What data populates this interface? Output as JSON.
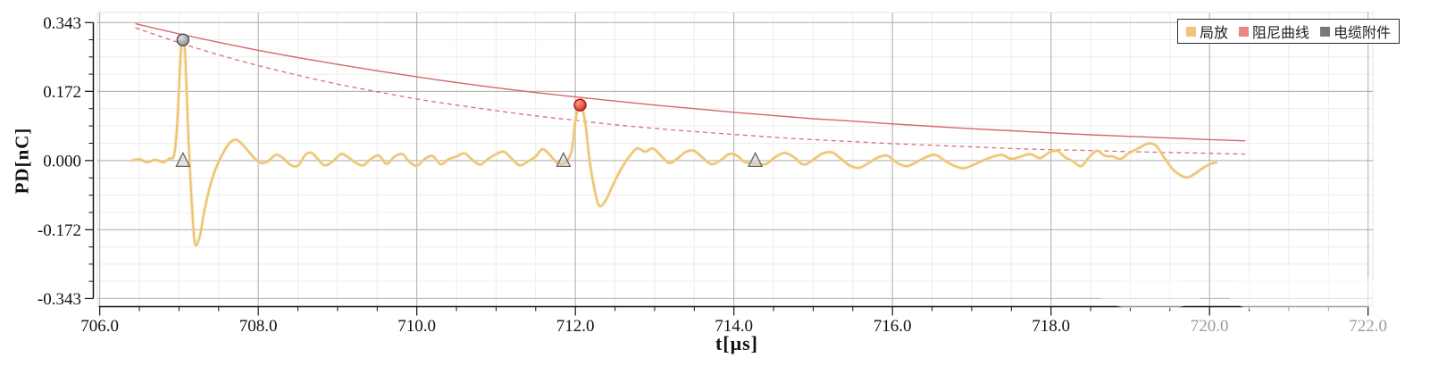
{
  "chart_data": {
    "type": "line",
    "title": "",
    "xlabel": "t[μs]",
    "ylabel": "PD[nC]",
    "xlim": [
      705.97,
      722.06
    ],
    "ylim": [
      -0.362,
      0.368
    ],
    "grid": true,
    "x_ticks": {
      "values": [
        706,
        708,
        710,
        712,
        714,
        716,
        718,
        720,
        722
      ],
      "labels": [
        "706.0",
        "708.0",
        "710.0",
        "712.0",
        "714.0",
        "716.0",
        "718.0",
        "720.0",
        "722.0"
      ],
      "minor_step": 0.5,
      "faded_labels": [
        "720.0",
        "722.0"
      ]
    },
    "y_ticks": {
      "values": [
        0.343,
        0.172,
        0,
        -0.172,
        -0.343
      ],
      "labels": [
        "0.343",
        "0.172",
        "0.000",
        "-0.172",
        "-0.343"
      ],
      "minor_step": 0.043
    },
    "legend": {
      "position": "top-right",
      "items": [
        {
          "label": "局放",
          "color": "#f0c47d"
        },
        {
          "label": "阻尼曲线",
          "color": "#e98583"
        },
        {
          "label": "电缆附件",
          "color": "#787878"
        }
      ]
    },
    "series": [
      {
        "name": "局放",
        "type": "line",
        "style": "solid",
        "color": "#ecc06c",
        "points": [
          [
            706.4,
            0.0
          ],
          [
            706.5,
            0.003
          ],
          [
            706.6,
            -0.004
          ],
          [
            706.7,
            0.002
          ],
          [
            706.8,
            -0.004
          ],
          [
            706.88,
            0.005
          ],
          [
            706.94,
            0.015
          ],
          [
            706.98,
            0.1
          ],
          [
            707.02,
            0.26
          ],
          [
            707.05,
            0.3
          ],
          [
            707.08,
            0.255
          ],
          [
            707.12,
            0.05
          ],
          [
            707.16,
            -0.1
          ],
          [
            707.2,
            -0.205
          ],
          [
            707.26,
            -0.19
          ],
          [
            707.32,
            -0.125
          ],
          [
            707.4,
            -0.058
          ],
          [
            707.48,
            -0.012
          ],
          [
            707.56,
            0.02
          ],
          [
            707.64,
            0.044
          ],
          [
            707.72,
            0.052
          ],
          [
            707.8,
            0.04
          ],
          [
            707.88,
            0.022
          ],
          [
            707.96,
            0.004
          ],
          [
            708.04,
            -0.006
          ],
          [
            708.12,
            -0.002
          ],
          [
            708.22,
            0.014
          ],
          [
            708.3,
            0.008
          ],
          [
            708.4,
            -0.01
          ],
          [
            708.5,
            -0.013
          ],
          [
            708.6,
            0.016
          ],
          [
            708.68,
            0.018
          ],
          [
            708.76,
            0.002
          ],
          [
            708.84,
            -0.012
          ],
          [
            708.94,
            -0.002
          ],
          [
            709.04,
            0.016
          ],
          [
            709.12,
            0.01
          ],
          [
            709.22,
            -0.004
          ],
          [
            709.32,
            -0.012
          ],
          [
            709.42,
            0.004
          ],
          [
            709.52,
            0.012
          ],
          [
            709.62,
            -0.008
          ],
          [
            709.72,
            0.01
          ],
          [
            709.82,
            0.016
          ],
          [
            709.9,
            -0.002
          ],
          [
            710.0,
            -0.013
          ],
          [
            710.1,
            0.004
          ],
          [
            710.2,
            0.011
          ],
          [
            710.3,
            -0.009
          ],
          [
            710.4,
            0.003
          ],
          [
            710.5,
            0.01
          ],
          [
            710.6,
            0.018
          ],
          [
            710.7,
            0.002
          ],
          [
            710.8,
            -0.01
          ],
          [
            710.9,
            0.004
          ],
          [
            711.0,
            0.016
          ],
          [
            711.1,
            0.022
          ],
          [
            711.2,
            0.004
          ],
          [
            711.3,
            -0.012
          ],
          [
            711.4,
            -0.002
          ],
          [
            711.5,
            0.01
          ],
          [
            711.58,
            0.028
          ],
          [
            711.66,
            0.018
          ],
          [
            711.76,
            -0.004
          ],
          [
            711.84,
            -0.008
          ],
          [
            711.9,
            0.0
          ],
          [
            711.96,
            0.03
          ],
          [
            712.0,
            0.1
          ],
          [
            712.06,
            0.138
          ],
          [
            712.12,
            0.1
          ],
          [
            712.18,
            0.0
          ],
          [
            712.24,
            -0.07
          ],
          [
            712.3,
            -0.112
          ],
          [
            712.38,
            -0.1
          ],
          [
            712.48,
            -0.058
          ],
          [
            712.58,
            -0.02
          ],
          [
            712.68,
            0.01
          ],
          [
            712.78,
            0.03
          ],
          [
            712.88,
            0.022
          ],
          [
            712.98,
            0.03
          ],
          [
            713.08,
            0.012
          ],
          [
            713.18,
            -0.006
          ],
          [
            713.28,
            0.004
          ],
          [
            713.4,
            0.022
          ],
          [
            713.5,
            0.024
          ],
          [
            713.6,
            0.008
          ],
          [
            713.72,
            -0.009
          ],
          [
            713.84,
            0.002
          ],
          [
            713.94,
            0.016
          ],
          [
            714.04,
            0.012
          ],
          [
            714.14,
            -0.004
          ],
          [
            714.27,
            -0.007
          ],
          [
            714.4,
            -0.009
          ],
          [
            714.52,
            0.008
          ],
          [
            714.64,
            0.019
          ],
          [
            714.76,
            0.008
          ],
          [
            714.88,
            -0.01
          ],
          [
            715.0,
            0.002
          ],
          [
            715.12,
            0.018
          ],
          [
            715.24,
            0.02
          ],
          [
            715.34,
            0.006
          ],
          [
            715.46,
            -0.012
          ],
          [
            715.58,
            -0.018
          ],
          [
            715.7,
            -0.006
          ],
          [
            715.82,
            0.008
          ],
          [
            715.94,
            0.012
          ],
          [
            716.06,
            -0.006
          ],
          [
            716.18,
            -0.014
          ],
          [
            716.3,
            -0.004
          ],
          [
            716.42,
            0.008
          ],
          [
            716.54,
            0.014
          ],
          [
            716.66,
            0.0
          ],
          [
            716.78,
            -0.013
          ],
          [
            716.9,
            -0.019
          ],
          [
            717.02,
            -0.011
          ],
          [
            717.14,
            0.0
          ],
          [
            717.26,
            0.009
          ],
          [
            717.38,
            0.014
          ],
          [
            717.5,
            0.004
          ],
          [
            717.62,
            0.01
          ],
          [
            717.74,
            0.016
          ],
          [
            717.86,
            0.006
          ],
          [
            717.98,
            0.02
          ],
          [
            718.08,
            0.024
          ],
          [
            718.18,
            0.008
          ],
          [
            718.28,
            -0.002
          ],
          [
            718.38,
            -0.014
          ],
          [
            718.48,
            0.008
          ],
          [
            718.58,
            0.024
          ],
          [
            718.68,
            0.012
          ],
          [
            718.78,
            0.01
          ],
          [
            718.88,
            0.004
          ],
          [
            718.98,
            0.018
          ],
          [
            719.1,
            0.03
          ],
          [
            719.22,
            0.042
          ],
          [
            719.32,
            0.038
          ],
          [
            719.42,
            0.01
          ],
          [
            719.52,
            -0.018
          ],
          [
            719.62,
            -0.035
          ],
          [
            719.72,
            -0.042
          ],
          [
            719.82,
            -0.032
          ],
          [
            719.92,
            -0.018
          ],
          [
            720.02,
            -0.008
          ],
          [
            720.1,
            -0.004
          ]
        ]
      },
      {
        "name": "阻尼曲线",
        "type": "line",
        "style": "solid",
        "color": "#d4666c",
        "points": [
          [
            706.45,
            0.34
          ],
          [
            707.0,
            0.315
          ],
          [
            707.5,
            0.294
          ],
          [
            708.0,
            0.274
          ],
          [
            708.5,
            0.256
          ],
          [
            709.0,
            0.239
          ],
          [
            709.5,
            0.223
          ],
          [
            710.0,
            0.208
          ],
          [
            710.5,
            0.194
          ],
          [
            711.0,
            0.181
          ],
          [
            711.5,
            0.169
          ],
          [
            712.0,
            0.158
          ],
          [
            712.5,
            0.148
          ],
          [
            713.0,
            0.138
          ],
          [
            713.5,
            0.129
          ],
          [
            714.0,
            0.12
          ],
          [
            714.5,
            0.112
          ],
          [
            715.0,
            0.104
          ],
          [
            715.5,
            0.098
          ],
          [
            716.0,
            0.091
          ],
          [
            716.5,
            0.085
          ],
          [
            717.0,
            0.079
          ],
          [
            717.5,
            0.074
          ],
          [
            718.0,
            0.069
          ],
          [
            718.5,
            0.064
          ],
          [
            719.0,
            0.06
          ],
          [
            719.5,
            0.056
          ],
          [
            720.0,
            0.052
          ],
          [
            720.45,
            0.049
          ]
        ]
      },
      {
        "name": "阻尼曲线",
        "type": "line",
        "style": "dashed",
        "color": "#da6f75",
        "points": [
          [
            706.45,
            0.33
          ],
          [
            707.0,
            0.293
          ],
          [
            707.5,
            0.263
          ],
          [
            708.0,
            0.236
          ],
          [
            708.5,
            0.212
          ],
          [
            709.0,
            0.19
          ],
          [
            709.5,
            0.171
          ],
          [
            710.0,
            0.153
          ],
          [
            710.5,
            0.138
          ],
          [
            711.0,
            0.124
          ],
          [
            711.5,
            0.111
          ],
          [
            712.0,
            0.1
          ],
          [
            712.5,
            0.089
          ],
          [
            713.0,
            0.08
          ],
          [
            713.5,
            0.072
          ],
          [
            714.0,
            0.065
          ],
          [
            714.5,
            0.058
          ],
          [
            715.0,
            0.052
          ],
          [
            715.5,
            0.047
          ],
          [
            716.0,
            0.042
          ],
          [
            716.5,
            0.038
          ],
          [
            717.0,
            0.034
          ],
          [
            717.5,
            0.03
          ],
          [
            718.0,
            0.027
          ],
          [
            718.5,
            0.025
          ],
          [
            719.0,
            0.022
          ],
          [
            719.5,
            0.02
          ],
          [
            720.0,
            0.018
          ],
          [
            720.45,
            0.016
          ]
        ]
      }
    ],
    "markers": {
      "pd_pulses": [
        {
          "t": 707.05,
          "pd_nC": 0.3,
          "shape": "circle",
          "color": "gray"
        },
        {
          "t": 712.06,
          "pd_nC": 0.138,
          "shape": "circle",
          "color": "red"
        }
      ],
      "cable_accessories": [
        {
          "t": 707.05,
          "pd_nC": 0
        },
        {
          "t": 711.85,
          "pd_nC": 0
        },
        {
          "t": 714.27,
          "pd_nC": 0
        }
      ]
    }
  }
}
